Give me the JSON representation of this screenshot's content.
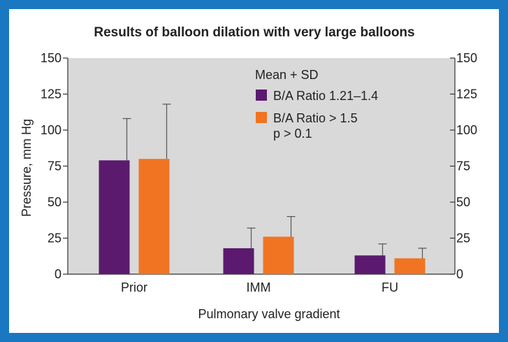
{
  "chart_data": {
    "type": "bar",
    "title": "Results of balloon dilation with very large balloons",
    "xlabel": "Pulmonary valve gradient",
    "ylabel": "Pressure, mm Hg",
    "ylim": [
      0,
      150
    ],
    "yticks": [
      "0",
      "25",
      "50",
      "75",
      "100",
      "125",
      "150"
    ],
    "right_yticks": [
      "0",
      "25",
      "50",
      "75",
      "100",
      "125",
      "150"
    ],
    "categories": [
      "Prior",
      "IMM",
      "FU"
    ],
    "series": [
      {
        "name": "B/A Ratio 1.21–1.4",
        "values": [
          79,
          18,
          13
        ],
        "sd": [
          29,
          14,
          8
        ],
        "color": "#5c1a6e"
      },
      {
        "name": "B/A Ratio > 1.5",
        "values": [
          80,
          26,
          11
        ],
        "sd": [
          38,
          14,
          7
        ],
        "color": "#f07422"
      }
    ],
    "legend": {
      "header": "Mean + SD",
      "note": "p > 0.1",
      "position": "top-right"
    },
    "grid": false,
    "plot_background": "#d9d9d9",
    "frame_color": "#1a78c2"
  }
}
